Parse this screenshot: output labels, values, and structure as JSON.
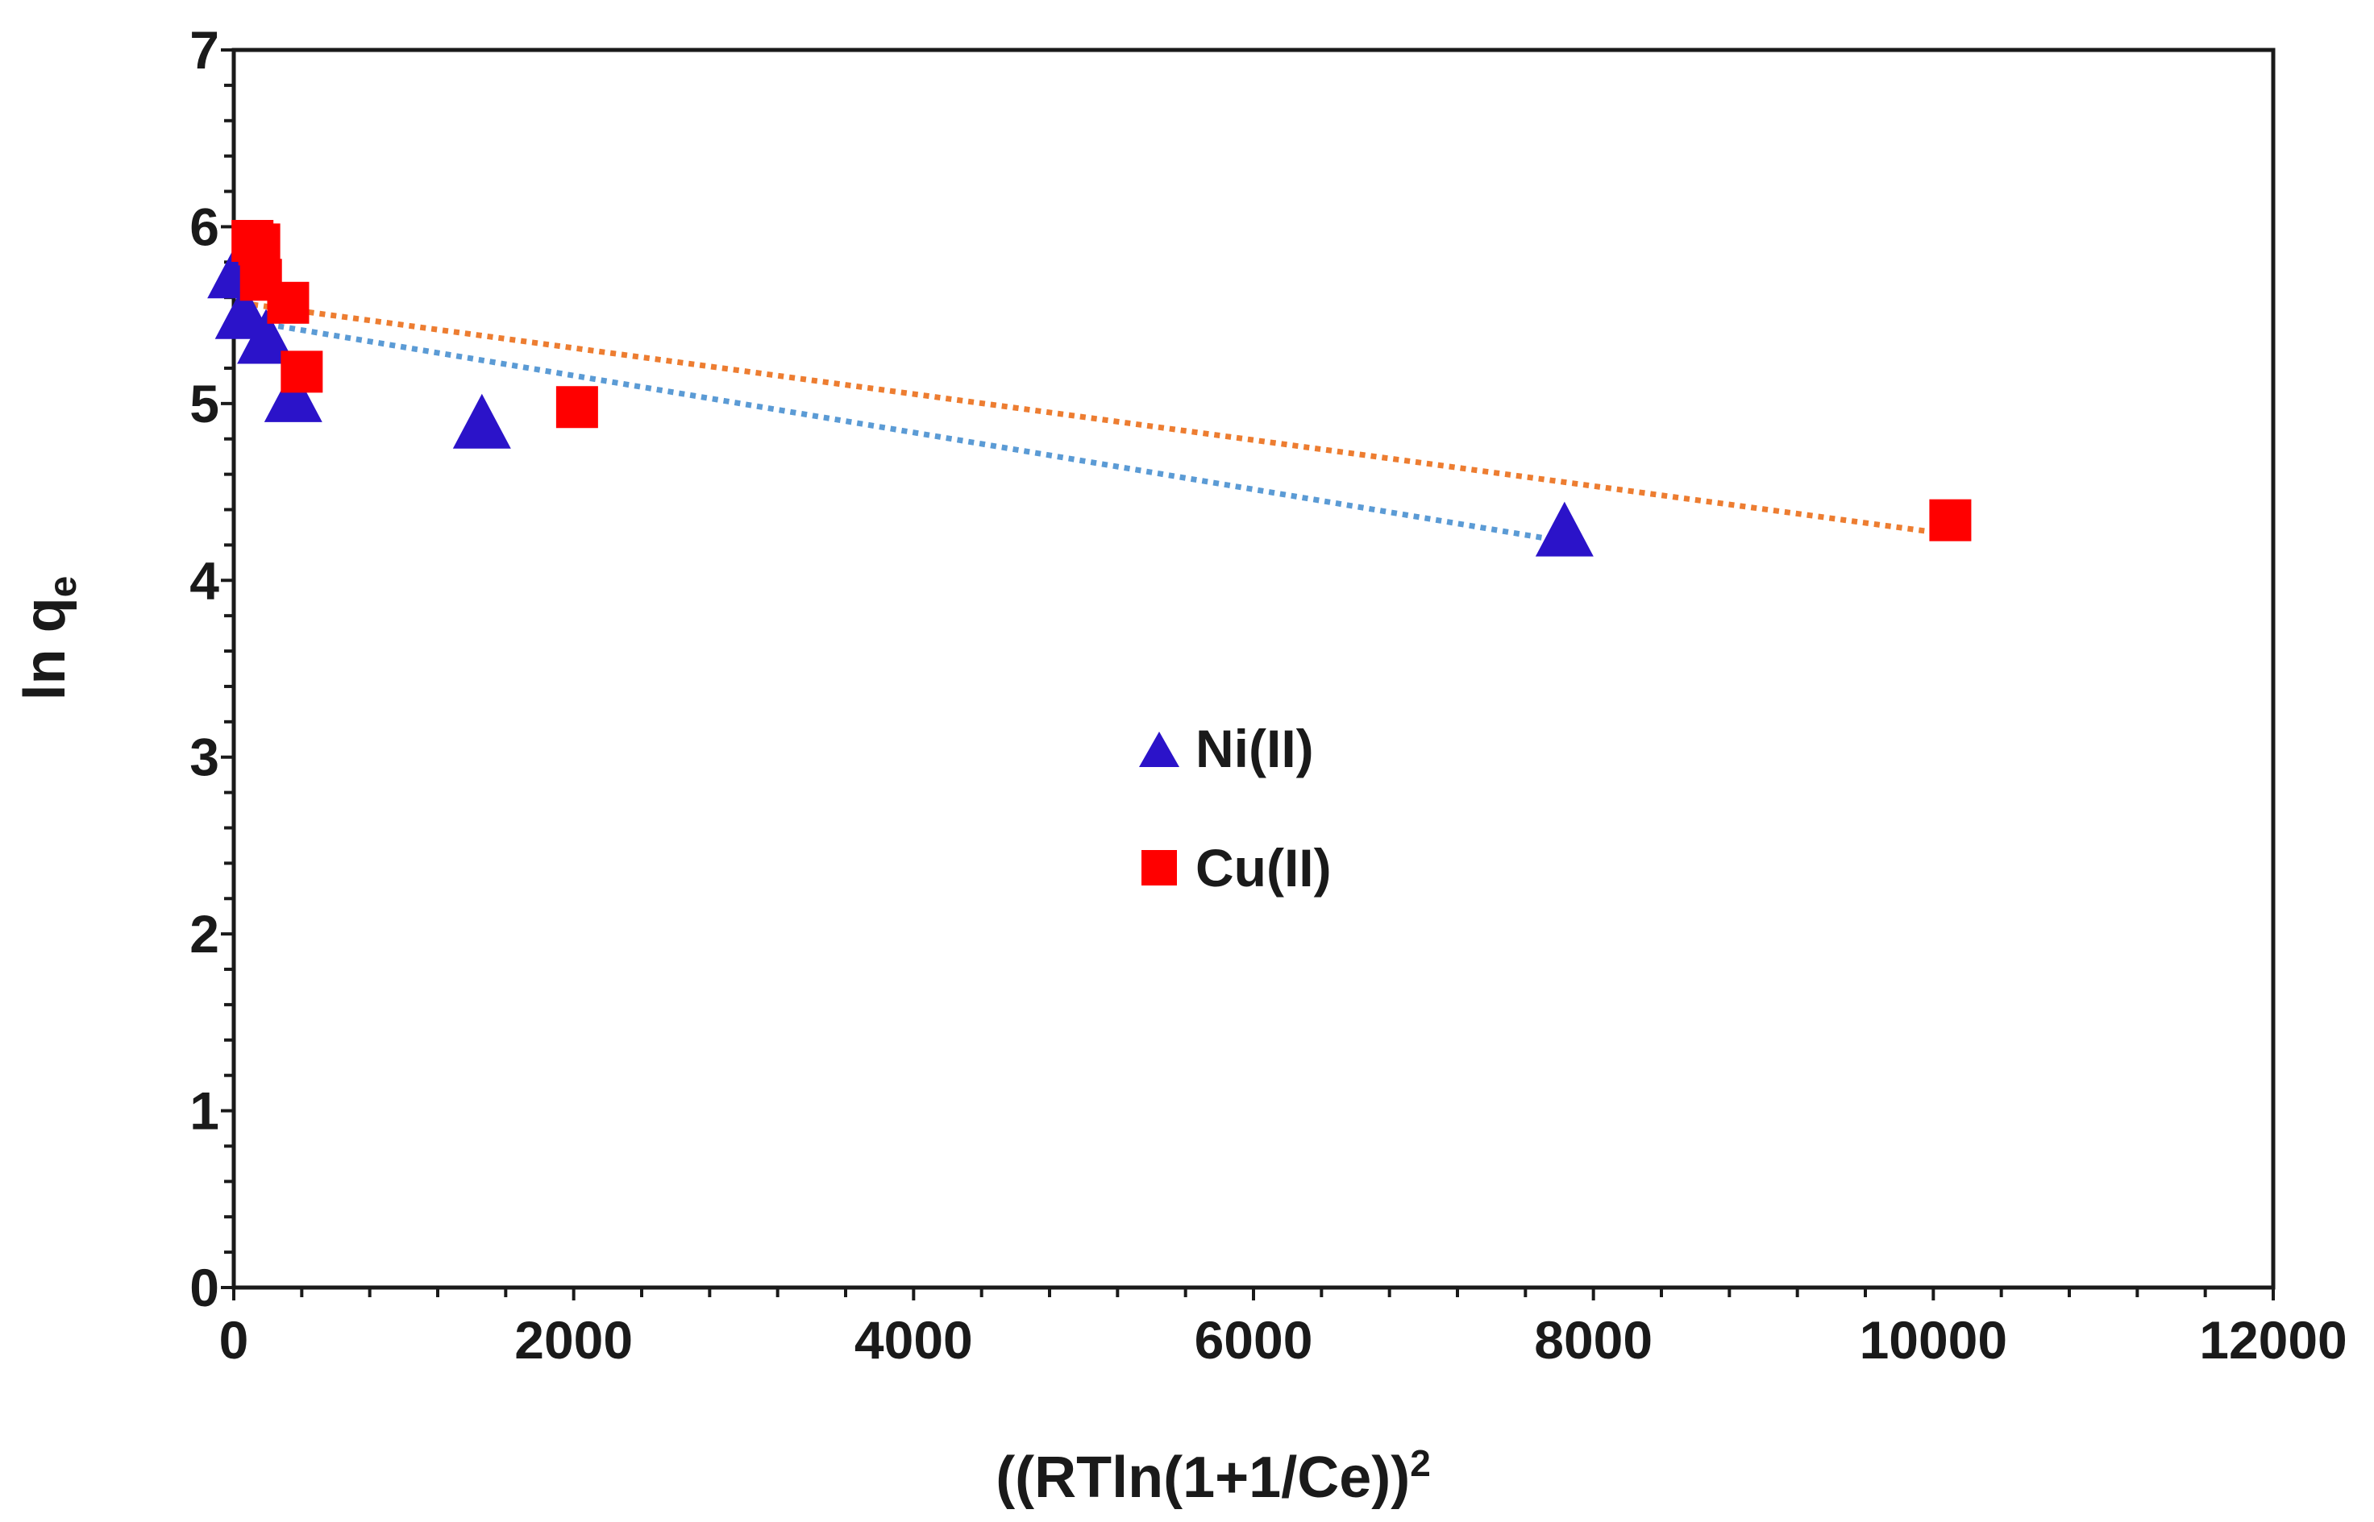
{
  "chart_data": {
    "type": "scatter",
    "title": "",
    "xlabel": "((RTln(1+1/Ce))",
    "xlabel_sup": "2",
    "ylabel": "ln q",
    "ylabel_sub": "e",
    "xlim": [
      0,
      12000
    ],
    "ylim": [
      0,
      7
    ],
    "x_ticks": [
      0,
      2000,
      4000,
      6000,
      8000,
      10000,
      12000
    ],
    "y_ticks": [
      0,
      1,
      2,
      3,
      4,
      5,
      6,
      7
    ],
    "x_tick_labels": [
      "0",
      "2000",
      "4000",
      "6000",
      "8000",
      "10000",
      "12000"
    ],
    "y_tick_labels": [
      "0",
      "1",
      "2",
      "3",
      "4",
      "5",
      "6",
      "7"
    ],
    "x_minor_step": 400,
    "y_minor_step": 0.2,
    "grid": false,
    "legend_position": "center",
    "series": [
      {
        "name": "Ni(II)",
        "marker": "triangle",
        "color": "#2b13c9",
        "trendline_color": "#5b9bd5",
        "x": [
          15,
          60,
          190,
          350,
          1460,
          7830
        ],
        "y": [
          5.75,
          5.52,
          5.38,
          5.05,
          4.9,
          4.29
        ],
        "trendline": {
          "x": [
            0,
            7830
          ],
          "y": [
            5.48,
            4.22
          ]
        }
      },
      {
        "name": "Cu(II)",
        "marker": "square",
        "color": "#ff0000",
        "trendline_color": "#ed7d31",
        "x": [
          110,
          150,
          160,
          320,
          400,
          2020,
          10100
        ],
        "y": [
          5.92,
          5.9,
          5.7,
          5.57,
          5.18,
          4.98,
          4.34
        ],
        "trendline": {
          "x": [
            110,
            10100
          ],
          "y": [
            5.56,
            4.26
          ]
        }
      }
    ]
  }
}
